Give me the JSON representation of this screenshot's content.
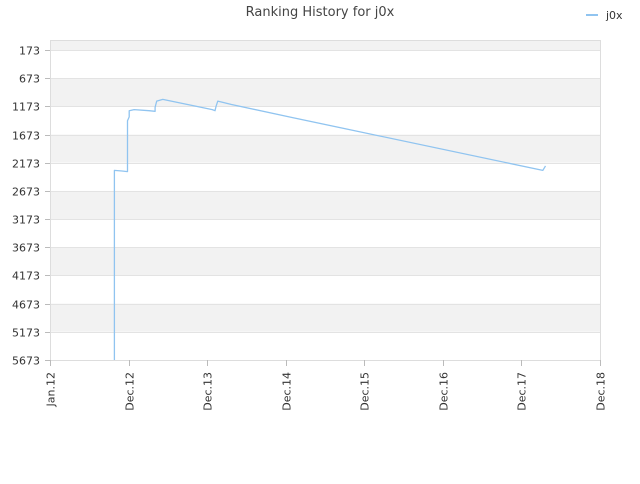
{
  "chart_data": {
    "type": "line",
    "title": "Ranking History for j0x",
    "xlabel": "",
    "ylabel": "",
    "y_inverted": true,
    "ylim": [
      5673,
      173
    ],
    "y_ticks": [
      173,
      673,
      1173,
      1673,
      2173,
      2673,
      3173,
      3673,
      4173,
      4673,
      5173,
      5673
    ],
    "x_tick_labels": [
      "Jan.12",
      "Dec.12",
      "Dec.13",
      "Dec.14",
      "Dec.15",
      "Dec.16",
      "Dec.17",
      "Dec.18"
    ],
    "grid": true,
    "legend_position": "top-right",
    "series": [
      {
        "name": "j0x",
        "color": "#90c4f0",
        "points": [
          {
            "t": 0.117,
            "rank": 5673
          },
          {
            "t": 0.117,
            "rank": 2310
          },
          {
            "t": 0.131,
            "rank": 2320
          },
          {
            "t": 0.141,
            "rank": 2330
          },
          {
            "t": 0.141,
            "rank": 1430
          },
          {
            "t": 0.144,
            "rank": 1360
          },
          {
            "t": 0.144,
            "rank": 1250
          },
          {
            "t": 0.153,
            "rank": 1230
          },
          {
            "t": 0.18,
            "rank": 1250
          },
          {
            "t": 0.191,
            "rank": 1260
          },
          {
            "t": 0.191,
            "rank": 1190
          },
          {
            "t": 0.194,
            "rank": 1080
          },
          {
            "t": 0.205,
            "rank": 1050
          },
          {
            "t": 0.295,
            "rank": 1230
          },
          {
            "t": 0.3,
            "rank": 1250
          },
          {
            "t": 0.302,
            "rank": 1170
          },
          {
            "t": 0.305,
            "rank": 1080
          },
          {
            "t": 0.33,
            "rank": 1140
          },
          {
            "t": 0.44,
            "rank": 1370
          },
          {
            "t": 0.896,
            "rank": 2310
          },
          {
            "t": 0.901,
            "rank": 2230
          }
        ]
      }
    ]
  }
}
